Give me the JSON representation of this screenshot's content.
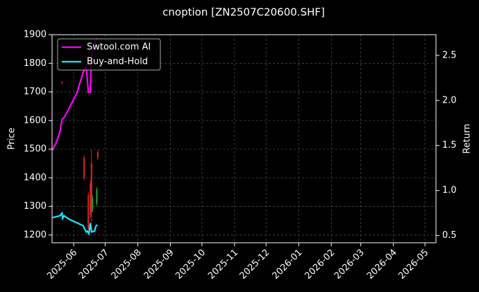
{
  "chart_data": {
    "type": "candlestick-with-returns",
    "title": "cnoption [ZN2507C20600.SHF]",
    "ylabel": "Price",
    "y2label": "Return",
    "xlim": [
      -20.5,
      344.5
    ],
    "xticks": [
      {
        "value": 0,
        "label": "2025-06"
      },
      {
        "value": 30,
        "label": "2025-07"
      },
      {
        "value": 61,
        "label": "2025-08"
      },
      {
        "value": 92,
        "label": "2025-09"
      },
      {
        "value": 122,
        "label": "2025-10"
      },
      {
        "value": 153,
        "label": "2025-11"
      },
      {
        "value": 183,
        "label": "2025-12"
      },
      {
        "value": 214,
        "label": "2026-01"
      },
      {
        "value": 245,
        "label": "2026-02"
      },
      {
        "value": 273,
        "label": "2026-03"
      },
      {
        "value": 304,
        "label": "2026-04"
      },
      {
        "value": 334,
        "label": "2026-05"
      }
    ],
    "ylim": [
      1173,
      1900
    ],
    "yticks": [
      1200,
      1300,
      1400,
      1500,
      1600,
      1700,
      1800,
      1900
    ],
    "y2lim": [
      0.42,
      2.73
    ],
    "y2ticks": [
      0.5,
      {
        "value": 1,
        "label": "1.0"
      },
      1.5,
      {
        "value": 2,
        "label": "2.0"
      },
      2.5
    ],
    "grid": true,
    "legend": "upper left",
    "up_color": "#2ca02c",
    "down_color": "#d62728",
    "candles": {
      "x": [
        -11,
        10,
        14,
        16,
        17,
        18,
        22,
        23
      ],
      "open": [
        1735,
        1470,
        1340,
        1380,
        1450,
        1290,
        1310,
        1490
      ],
      "high": [
        1736,
        1479,
        1350,
        1390,
        1498,
        1340,
        1368,
        1498
      ],
      "low": [
        1729,
        1392,
        1218,
        1260,
        1246,
        1280,
        1300,
        1462
      ],
      "close": [
        1730,
        1400,
        1222,
        1270,
        1280,
        1330,
        1360,
        1470
      ]
    },
    "series": [
      {
        "name": "Swtool.com AI",
        "color": "#ff00ff",
        "axis": "y2",
        "x": [
          -20,
          -17,
          -13,
          -11,
          -9,
          -4,
          3,
          9,
          12,
          14,
          16,
          16.5,
          18,
          22
        ],
        "values": [
          1.45,
          1.52,
          1.65,
          1.79,
          1.81,
          1.92,
          2.08,
          2.31,
          2.38,
          2.09,
          2.09,
          2.35,
          2.58,
          2.69
        ]
      },
      {
        "name": "Buy-and-Hold",
        "color": "#1fe5ff",
        "axis": "y2",
        "x": [
          -20,
          -13,
          -11,
          -10.5,
          -9,
          -4,
          9,
          12,
          13,
          14.5,
          16,
          17,
          20,
          21,
          22.5
        ],
        "values": [
          0.7,
          0.72,
          0.75,
          0.69,
          0.72,
          0.68,
          0.61,
          0.54,
          0.55,
          0.52,
          0.64,
          0.54,
          0.55,
          0.6,
          0.62
        ]
      }
    ]
  }
}
